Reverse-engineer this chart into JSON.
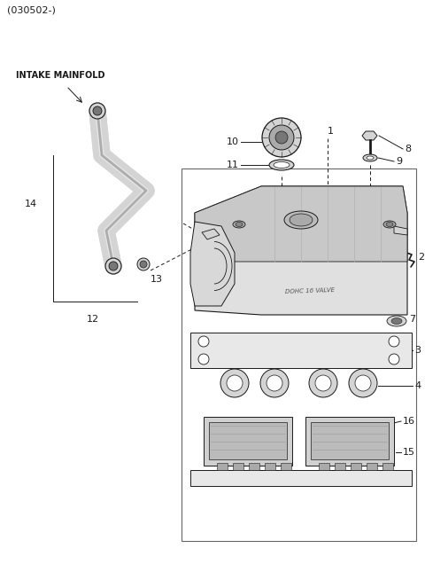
{
  "title": "(030502-)",
  "bg_color": "#ffffff",
  "line_color": "#1a1a1a",
  "gray_light": "#d4d4d4",
  "gray_mid": "#aaaaaa",
  "gray_dark": "#777777",
  "font_size_title": 8,
  "font_size_label": 8,
  "intake_label": "INTAKE MAINFOLD",
  "figw": 4.8,
  "figh": 6.54,
  "dpi": 100
}
